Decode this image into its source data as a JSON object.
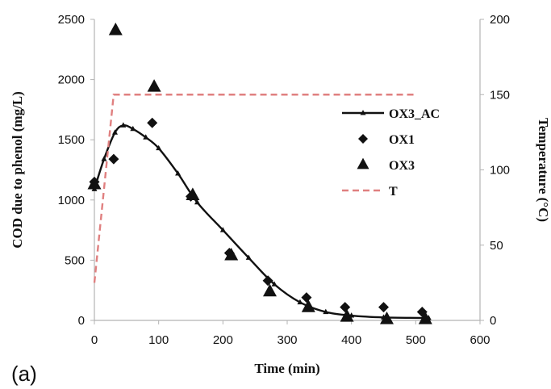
{
  "panel_label": "(a)",
  "chart_data": {
    "type": "scatter",
    "xlabel": "Time (min)",
    "ylabel": "COD due to phenol (mg/L)",
    "y2label": "Temperature (°C)",
    "xlim": [
      0,
      600
    ],
    "ylim": [
      0,
      2500
    ],
    "y2lim": [
      0,
      200
    ],
    "x_ticks": [
      "0",
      "100",
      "200",
      "300",
      "400",
      "500",
      "600"
    ],
    "y_ticks": [
      "0",
      "500",
      "1000",
      "1500",
      "2000",
      "2500"
    ],
    "y2_ticks": [
      "0",
      "50",
      "100",
      "150",
      "200"
    ],
    "legend_position": "right",
    "grid": false,
    "series": [
      {
        "name": "OX3_AC",
        "style": "line-triangle",
        "color": "#111111",
        "x": [
          0,
          15,
          32,
          45,
          60,
          80,
          100,
          130,
          160,
          200,
          240,
          280,
          320,
          360,
          400,
          450,
          520
        ],
        "y": [
          1090,
          1340,
          1560,
          1620,
          1590,
          1520,
          1430,
          1220,
          980,
          750,
          520,
          300,
          150,
          70,
          40,
          25,
          20
        ]
      },
      {
        "name": "OX1",
        "style": "diamond",
        "color": "#111111",
        "x": [
          0,
          30,
          90,
          150,
          210,
          270,
          330,
          390,
          450,
          510
        ],
        "y": [
          1150,
          1340,
          1640,
          1030,
          560,
          330,
          190,
          110,
          110,
          70
        ]
      },
      {
        "name": "OX3",
        "style": "triangle",
        "color": "#111111",
        "x": [
          0,
          33,
          93,
          153,
          213,
          273,
          333,
          393,
          455,
          515
        ],
        "y": [
          1130,
          2410,
          1940,
          1040,
          540,
          240,
          110,
          30,
          10,
          10
        ]
      },
      {
        "name": "T",
        "style": "dashed",
        "color": "#e08080",
        "axis": "right",
        "x": [
          0,
          30,
          500
        ],
        "y": [
          25,
          150,
          150
        ]
      }
    ]
  }
}
